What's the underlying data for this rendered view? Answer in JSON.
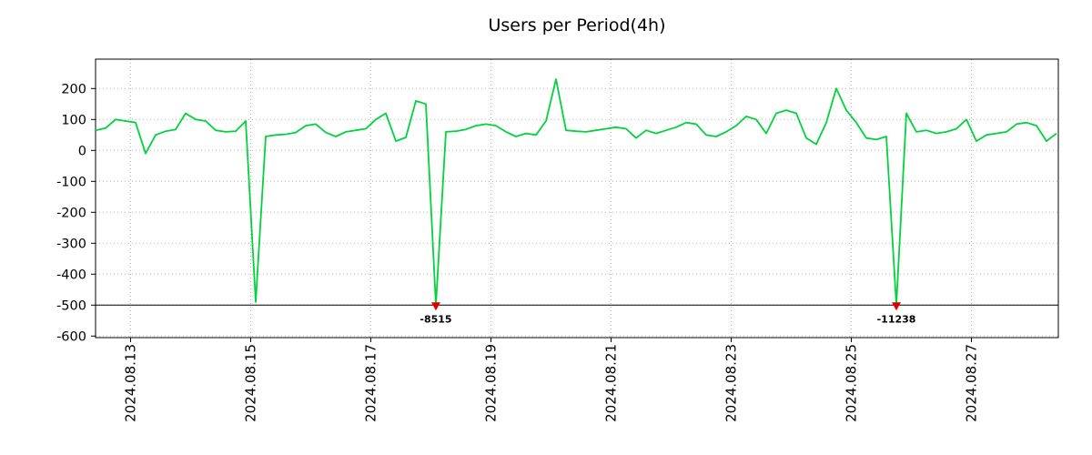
{
  "chart_data": {
    "type": "line",
    "title": "Users per Period(4h)",
    "interval_hours": 4,
    "points_per_day": 6,
    "line_color": "#00d33c",
    "marker_color": "#dd0000",
    "grid_color": "#b5b5b5",
    "clip_value": -500,
    "ylim": [
      -605,
      295
    ],
    "xlim": [
      0,
      16.03
    ],
    "grid": true,
    "legend": false,
    "background": "#ffffff",
    "y_ticks": [
      200,
      100,
      0,
      -100,
      -200,
      -300,
      -400,
      -500,
      -600
    ],
    "x_ticks": [
      {
        "t": 0.583,
        "label": "2024.08.13"
      },
      {
        "t": 2.583,
        "label": "2024.08.15"
      },
      {
        "t": 4.583,
        "label": "2024.08.17"
      },
      {
        "t": 6.583,
        "label": "2024.08.19"
      },
      {
        "t": 8.583,
        "label": "2024.08.21"
      },
      {
        "t": 10.583,
        "label": "2024.08.23"
      },
      {
        "t": 12.583,
        "label": "2024.08.25"
      },
      {
        "t": 14.583,
        "label": "2024.08.27"
      }
    ],
    "values": [
      65,
      72,
      100,
      95,
      90,
      -10,
      50,
      62,
      68,
      120,
      100,
      95,
      65,
      60,
      62,
      95,
      -490,
      45,
      50,
      52,
      58,
      80,
      85,
      58,
      45,
      60,
      65,
      70,
      100,
      120,
      30,
      42,
      160,
      150,
      -8515,
      60,
      62,
      68,
      80,
      85,
      80,
      60,
      45,
      55,
      50,
      95,
      230,
      65,
      62,
      60,
      65,
      70,
      75,
      70,
      40,
      65,
      55,
      65,
      75,
      90,
      85,
      50,
      45,
      60,
      80,
      110,
      100,
      55,
      120,
      130,
      120,
      40,
      20,
      90,
      200,
      130,
      90,
      40,
      35,
      45,
      -11238,
      120,
      60,
      65,
      55,
      60,
      70,
      100,
      30,
      50,
      55,
      60,
      85,
      90,
      80,
      30,
      55
    ],
    "clip_markers": [
      {
        "index": 34,
        "value": -8515,
        "label": "-8515"
      },
      {
        "index": 80,
        "value": -11238,
        "label": "-11238"
      }
    ]
  }
}
